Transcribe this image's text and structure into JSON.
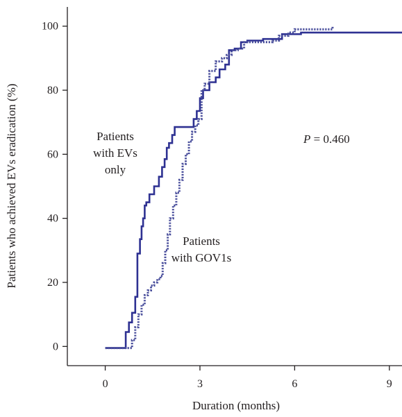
{
  "chart_data": {
    "type": "line",
    "title": "",
    "xlabel": "Duration (months)",
    "ylabel": "Patients who achieved EVs eradication (%)",
    "xlim": [
      -1.2,
      9.4
    ],
    "ylim": [
      -6,
      106
    ],
    "xticks": [
      0,
      3,
      6,
      9
    ],
    "yticks": [
      0,
      20,
      40,
      60,
      80,
      100
    ],
    "xtick_labels": [
      "0",
      "3",
      "6",
      "9"
    ],
    "ytick_labels": [
      "0",
      "20",
      "40",
      "60",
      "80",
      "100"
    ],
    "grid": false,
    "legend": "none",
    "step": true,
    "series": [
      {
        "name": "Patients with EVs only",
        "style": "solid",
        "color": "#2e3192",
        "x": [
          0.0,
          0.65,
          0.75,
          0.85,
          0.95,
          1.02,
          1.1,
          1.15,
          1.2,
          1.25,
          1.3,
          1.4,
          1.55,
          1.7,
          1.8,
          1.88,
          1.95,
          2.02,
          2.12,
          2.2,
          2.8,
          2.9,
          3.0,
          3.1,
          3.3,
          3.5,
          3.62,
          3.8,
          3.92,
          4.1,
          4.3,
          4.5,
          5.0,
          5.4,
          5.6,
          5.7,
          6.2,
          9.4
        ],
        "y": [
          -0.5,
          4.5,
          7.5,
          10.5,
          15.5,
          29,
          33.5,
          37.5,
          40,
          44,
          45,
          47.5,
          50,
          53,
          56,
          58.5,
          62,
          63.5,
          66,
          68.5,
          71,
          73.5,
          77.5,
          80,
          82.5,
          84,
          86.5,
          88,
          92.5,
          93,
          95,
          95.5,
          96,
          96,
          97.5,
          97.5,
          98,
          98
        ]
      },
      {
        "name": "Patients with GOV1s",
        "style": "dotted",
        "color": "#4a4f9c",
        "x": [
          0.0,
          0.85,
          0.95,
          1.05,
          1.15,
          1.25,
          1.35,
          1.45,
          1.55,
          1.65,
          1.75,
          1.82,
          1.9,
          1.98,
          2.05,
          2.15,
          2.25,
          2.35,
          2.45,
          2.55,
          2.65,
          2.75,
          2.85,
          2.95,
          3.05,
          3.15,
          3.3,
          3.5,
          3.7,
          3.85,
          4.0,
          4.2,
          4.4,
          5.3,
          5.5,
          5.8,
          6.0,
          7.2
        ],
        "y": [
          -0.5,
          2,
          6,
          10,
          13,
          16,
          17.5,
          19,
          20,
          21,
          22,
          26,
          30,
          35,
          40,
          44,
          48,
          52,
          57,
          60,
          64,
          67,
          69,
          71,
          80,
          82,
          86,
          89,
          90,
          91,
          92.5,
          93,
          95,
          95.5,
          97,
          98,
          99,
          100
        ]
      }
    ],
    "annotations": {
      "evs_label": [
        "Patients",
        "with EVs",
        "only"
      ],
      "gov_label": [
        "Patients",
        "with GOV1s"
      ],
      "p_symbol": "P",
      "p_value": " = 0.460"
    }
  }
}
